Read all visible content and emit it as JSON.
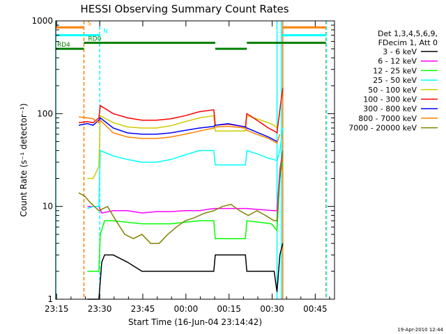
{
  "chart_data": {
    "type": "line",
    "title": "HESSI Observing Summary Count Rates",
    "xlabel": "Start Time (16-Jun-04 23:14:42)",
    "ylabel": "Count Rate (s⁻¹ detector⁻¹)",
    "x_unit": "minutes after 23:14:42",
    "xlim": [
      0,
      97
    ],
    "ylim": [
      1,
      1000
    ],
    "yscale": "log",
    "x_ticks": [
      {
        "value": 0.3,
        "label": "23:15"
      },
      {
        "value": 15.3,
        "label": "23:30"
      },
      {
        "value": 30.3,
        "label": "23:45"
      },
      {
        "value": 45.3,
        "label": "00:00"
      },
      {
        "value": 60.3,
        "label": "00:15"
      },
      {
        "value": 75.3,
        "label": "00:30"
      },
      {
        "value": 90.3,
        "label": "00:45"
      }
    ],
    "y_ticks": [
      {
        "value": 1,
        "label": "1"
      },
      {
        "value": 10,
        "label": "10"
      },
      {
        "value": 100,
        "label": "100"
      },
      {
        "value": 1000,
        "label": "1000"
      }
    ],
    "legend_header": [
      "Det 1,3,4,5,6,9,",
      "FDecim 1, Att 0"
    ],
    "series": [
      {
        "name": "3 - 6 keV",
        "color": "#000000",
        "points": [
          [
            11,
            1
          ],
          [
            15,
            1
          ],
          [
            16,
            2.5
          ],
          [
            17,
            3
          ],
          [
            20,
            3
          ],
          [
            25,
            2.5
          ],
          [
            30,
            2
          ],
          [
            40,
            2
          ],
          [
            50,
            2
          ],
          [
            55,
            2
          ],
          [
            55.5,
            3
          ],
          [
            58,
            3
          ],
          [
            62,
            3
          ],
          [
            66,
            3
          ],
          [
            66.5,
            2
          ],
          [
            72,
            2
          ],
          [
            76,
            2
          ],
          [
            77,
            1.2
          ],
          [
            78,
            3
          ],
          [
            79,
            4
          ]
        ]
      },
      {
        "name": "6 - 12 keV",
        "color": "#ff00ff",
        "points": [
          [
            11,
            10
          ],
          [
            13,
            10
          ],
          [
            15,
            10
          ],
          [
            16,
            8.5
          ],
          [
            20,
            9
          ],
          [
            25,
            9
          ],
          [
            30,
            8.5
          ],
          [
            35,
            8.8
          ],
          [
            40,
            8.8
          ],
          [
            45,
            9
          ],
          [
            50,
            9
          ],
          [
            55,
            9.5
          ],
          [
            55.5,
            9.5
          ],
          [
            60,
            9.5
          ],
          [
            66,
            9.5
          ],
          [
            66.5,
            9.5
          ],
          [
            70,
            9.3
          ],
          [
            76,
            9
          ],
          [
            77,
            9
          ],
          [
            78,
            25
          ],
          [
            79,
            40
          ]
        ]
      },
      {
        "name": "12 - 25 keV",
        "color": "#00ff00",
        "points": [
          [
            11,
            2
          ],
          [
            13,
            2
          ],
          [
            15,
            2
          ],
          [
            15.5,
            5
          ],
          [
            17,
            7
          ],
          [
            20,
            7
          ],
          [
            30,
            6.5
          ],
          [
            40,
            6.5
          ],
          [
            50,
            7
          ],
          [
            55,
            7
          ],
          [
            55.5,
            4.5
          ],
          [
            60,
            4.5
          ],
          [
            66,
            4.5
          ],
          [
            66.5,
            7
          ],
          [
            70,
            6.8
          ],
          [
            75,
            6.5
          ],
          [
            76,
            6
          ],
          [
            77,
            5.5
          ],
          [
            78,
            20
          ],
          [
            79,
            30
          ]
        ]
      },
      {
        "name": "25 - 50 keV",
        "color": "#00ffff",
        "points": [
          [
            11,
            9.5
          ],
          [
            13,
            10
          ],
          [
            15,
            10
          ],
          [
            15.5,
            40
          ],
          [
            20,
            35
          ],
          [
            25,
            32
          ],
          [
            30,
            30
          ],
          [
            35,
            30
          ],
          [
            40,
            32
          ],
          [
            45,
            36
          ],
          [
            50,
            40
          ],
          [
            55,
            40
          ],
          [
            55.5,
            28
          ],
          [
            60,
            28
          ],
          [
            66,
            28
          ],
          [
            66.5,
            40
          ],
          [
            70,
            37
          ],
          [
            74,
            33
          ],
          [
            76,
            32
          ],
          [
            77,
            31
          ],
          [
            78,
            40
          ],
          [
            79,
            70
          ]
        ]
      },
      {
        "name": "50 - 100 keV",
        "color": "#cccc00",
        "points": [
          [
            11,
            20
          ],
          [
            13,
            20
          ],
          [
            15,
            27
          ],
          [
            15.5,
            95
          ],
          [
            20,
            80
          ],
          [
            25,
            72
          ],
          [
            30,
            70
          ],
          [
            35,
            70
          ],
          [
            40,
            74
          ],
          [
            45,
            82
          ],
          [
            50,
            90
          ],
          [
            55,
            95
          ],
          [
            55.5,
            65
          ],
          [
            60,
            65
          ],
          [
            66,
            65
          ],
          [
            66.5,
            95
          ],
          [
            70,
            88
          ],
          [
            74,
            80
          ],
          [
            76,
            75
          ],
          [
            77,
            70
          ],
          [
            78,
            100
          ]
        ]
      },
      {
        "name": "100 - 300 keV",
        "color": "#ff0000",
        "points": [
          [
            8,
            80
          ],
          [
            11,
            82
          ],
          [
            13,
            80
          ],
          [
            15,
            90
          ],
          [
            15.5,
            122
          ],
          [
            20,
            100
          ],
          [
            25,
            90
          ],
          [
            30,
            85
          ],
          [
            35,
            85
          ],
          [
            40,
            88
          ],
          [
            45,
            95
          ],
          [
            50,
            105
          ],
          [
            55,
            110
          ],
          [
            55.5,
            75
          ],
          [
            60,
            77
          ],
          [
            66,
            72
          ],
          [
            66.5,
            100
          ],
          [
            70,
            85
          ],
          [
            74,
            70
          ],
          [
            76,
            65
          ],
          [
            77,
            62
          ],
          [
            78,
            110
          ],
          [
            79,
            190
          ]
        ]
      },
      {
        "name": "300 - 800 keV",
        "color": "#0000ff",
        "points": [
          [
            8,
            75
          ],
          [
            11,
            78
          ],
          [
            13,
            75
          ],
          [
            15,
            85
          ],
          [
            15.5,
            90
          ],
          [
            20,
            70
          ],
          [
            25,
            62
          ],
          [
            30,
            60
          ],
          [
            35,
            60
          ],
          [
            40,
            62
          ],
          [
            45,
            66
          ],
          [
            50,
            70
          ],
          [
            55,
            73
          ],
          [
            55.5,
            75
          ],
          [
            60,
            78
          ],
          [
            66,
            72
          ],
          [
            66.5,
            70
          ],
          [
            70,
            63
          ],
          [
            74,
            56
          ],
          [
            76,
            52
          ],
          [
            77,
            50
          ]
        ]
      },
      {
        "name": "800 - 7000 keV",
        "color": "#ff8000",
        "points": [
          [
            8,
            92
          ],
          [
            11,
            90
          ],
          [
            13,
            88
          ],
          [
            15,
            80
          ],
          [
            15.5,
            85
          ],
          [
            20,
            62
          ],
          [
            25,
            56
          ],
          [
            30,
            54
          ],
          [
            35,
            54
          ],
          [
            40,
            56
          ],
          [
            45,
            60
          ],
          [
            50,
            65
          ],
          [
            55,
            70
          ],
          [
            55.5,
            72
          ],
          [
            60,
            73
          ],
          [
            66,
            70
          ],
          [
            66.5,
            66
          ],
          [
            70,
            60
          ],
          [
            74,
            54
          ],
          [
            76,
            50
          ],
          [
            77,
            48
          ],
          [
            78,
            60
          ]
        ]
      },
      {
        "name": "7000 - 20000 keV",
        "color": "#808000",
        "points": [
          [
            8,
            14
          ],
          [
            10,
            13
          ],
          [
            12,
            11
          ],
          [
            15,
            9
          ],
          [
            18,
            10
          ],
          [
            21,
            7
          ],
          [
            24,
            5
          ],
          [
            27,
            4.5
          ],
          [
            30,
            5
          ],
          [
            33,
            4
          ],
          [
            36,
            4
          ],
          [
            39,
            5
          ],
          [
            42,
            6
          ],
          [
            45,
            7
          ],
          [
            48,
            7.5
          ],
          [
            52,
            8.5
          ],
          [
            55,
            9
          ],
          [
            58,
            10
          ],
          [
            61,
            10.5
          ],
          [
            64,
            9
          ],
          [
            67,
            8
          ],
          [
            70,
            9
          ],
          [
            73,
            8
          ],
          [
            76,
            7
          ],
          [
            77,
            7
          ],
          [
            78,
            20
          ],
          [
            79,
            40
          ]
        ]
      }
    ],
    "verticals": [
      {
        "x": 0,
        "color": "#00ffff",
        "dash": false
      },
      {
        "x": 9.8,
        "color": "#ff8000",
        "dash": true
      },
      {
        "x": 15.3,
        "color": "#00ffff",
        "dash": true
      },
      {
        "x": 77,
        "color": "#00ffff",
        "dash": false
      },
      {
        "x": 78.5,
        "color": "#00ffff",
        "dash": false
      },
      {
        "x": 79,
        "color": "#ff8000",
        "dash": false
      },
      {
        "x": 94,
        "color": "#ff8000",
        "dash": true
      },
      {
        "x": 94.2,
        "color": "#00ffff",
        "dash": true
      }
    ],
    "flag_bars": [
      {
        "label": "S",
        "color": "#ff8000",
        "segments": [
          [
            0,
            9.8
          ],
          [
            79,
            94
          ]
        ],
        "y": 850
      },
      {
        "label": "N",
        "color": "#00ffff",
        "segments": [
          [
            0,
            15.3
          ],
          [
            78.5,
            94
          ]
        ],
        "y": 700
      },
      {
        "label": "RD0",
        "color": "#008000",
        "segments": [
          [
            9.8,
            55.5
          ],
          [
            66.5,
            94
          ]
        ],
        "y": 580
      },
      {
        "label": "RD4",
        "color": "#008000",
        "segments": [
          [
            0,
            9.8
          ],
          [
            55.5,
            66.5
          ]
        ],
        "y": 500
      }
    ],
    "timestamp": "19-Apr-2010 12:44"
  }
}
